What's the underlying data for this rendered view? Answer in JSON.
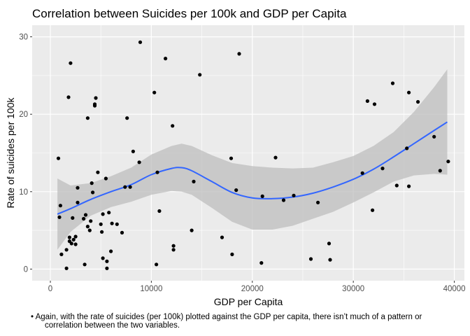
{
  "note": {
    "bullet": "•",
    "line1": "Again, with the rate of suicides (per 100k) plotted against the GDP per capita, there isn’t much of a pattern or",
    "line2": "correlation between the two variables."
  },
  "colors": {
    "panel": "#ebebeb",
    "grid": "#ffffff",
    "band": "#bdbdbd",
    "smooth": "#3366ff",
    "point": "#000000",
    "tick_text": "#4d4d4d"
  },
  "chart_data": {
    "type": "scatter",
    "title": "Correlation between Suicides per 100k and GDP per Capita",
    "xlabel": "GDP per Capita",
    "ylabel": "Rate of suicides per 100k",
    "xlim": [
      -1800,
      41000
    ],
    "ylim": [
      -1.5,
      31.5
    ],
    "xticks": [
      0,
      10000,
      20000,
      30000,
      40000
    ],
    "xtick_labels": [
      "0",
      "10000",
      "20000",
      "30000",
      "40000"
    ],
    "yticks": [
      0,
      10,
      20,
      30
    ],
    "ytick_labels": [
      "0",
      "10",
      "20",
      "30"
    ],
    "grid": true,
    "legend": "none",
    "points": [
      {
        "x": 800,
        "y": 14.3
      },
      {
        "x": 900,
        "y": 6.7
      },
      {
        "x": 1000,
        "y": 8.2
      },
      {
        "x": 1100,
        "y": 1.9
      },
      {
        "x": 1600,
        "y": 0.1
      },
      {
        "x": 1600,
        "y": 2.5
      },
      {
        "x": 1800,
        "y": 22.2
      },
      {
        "x": 1900,
        "y": 3.6
      },
      {
        "x": 1900,
        "y": 4.1
      },
      {
        "x": 2000,
        "y": 26.6
      },
      {
        "x": 2100,
        "y": 3.3
      },
      {
        "x": 2200,
        "y": 6.6
      },
      {
        "x": 2300,
        "y": 3.8
      },
      {
        "x": 2500,
        "y": 4.2
      },
      {
        "x": 2500,
        "y": 3.2
      },
      {
        "x": 2700,
        "y": 8.6
      },
      {
        "x": 2700,
        "y": 10.5
      },
      {
        "x": 3300,
        "y": 6.5
      },
      {
        "x": 3400,
        "y": 0.6
      },
      {
        "x": 3500,
        "y": 7.0
      },
      {
        "x": 3700,
        "y": 19.5
      },
      {
        "x": 3700,
        "y": 5.5
      },
      {
        "x": 3900,
        "y": 5.0
      },
      {
        "x": 4000,
        "y": 6.2
      },
      {
        "x": 4100,
        "y": 11.1
      },
      {
        "x": 4200,
        "y": 9.9
      },
      {
        "x": 4400,
        "y": 21.1
      },
      {
        "x": 4400,
        "y": 21.3
      },
      {
        "x": 4500,
        "y": 22.1
      },
      {
        "x": 4700,
        "y": 12.5
      },
      {
        "x": 5000,
        "y": 5.8
      },
      {
        "x": 5100,
        "y": 4.8
      },
      {
        "x": 5200,
        "y": 7.1
      },
      {
        "x": 5200,
        "y": 1.4
      },
      {
        "x": 5500,
        "y": 11.7
      },
      {
        "x": 5600,
        "y": 0.1
      },
      {
        "x": 5600,
        "y": 1.0
      },
      {
        "x": 5800,
        "y": 7.3
      },
      {
        "x": 6000,
        "y": 2.3
      },
      {
        "x": 6100,
        "y": 5.9
      },
      {
        "x": 6600,
        "y": 5.8
      },
      {
        "x": 7100,
        "y": 4.7
      },
      {
        "x": 7400,
        "y": 10.6
      },
      {
        "x": 7600,
        "y": 19.5
      },
      {
        "x": 7900,
        "y": 10.6
      },
      {
        "x": 8200,
        "y": 15.2
      },
      {
        "x": 8800,
        "y": 13.8
      },
      {
        "x": 8900,
        "y": 29.3
      },
      {
        "x": 10300,
        "y": 22.8
      },
      {
        "x": 10500,
        "y": 0.6
      },
      {
        "x": 10600,
        "y": 12.5
      },
      {
        "x": 10800,
        "y": 7.5
      },
      {
        "x": 11400,
        "y": 27.2
      },
      {
        "x": 12100,
        "y": 18.5
      },
      {
        "x": 12200,
        "y": 2.5
      },
      {
        "x": 12200,
        "y": 3.0
      },
      {
        "x": 14000,
        "y": 5.0
      },
      {
        "x": 14200,
        "y": 11.3
      },
      {
        "x": 14800,
        "y": 25.1
      },
      {
        "x": 17000,
        "y": 4.1
      },
      {
        "x": 17900,
        "y": 14.3
      },
      {
        "x": 18000,
        "y": 1.9
      },
      {
        "x": 18400,
        "y": 10.2
      },
      {
        "x": 18700,
        "y": 27.8
      },
      {
        "x": 20900,
        "y": 0.8
      },
      {
        "x": 21000,
        "y": 9.4
      },
      {
        "x": 22300,
        "y": 14.4
      },
      {
        "x": 23100,
        "y": 8.9
      },
      {
        "x": 24100,
        "y": 9.5
      },
      {
        "x": 25800,
        "y": 1.3
      },
      {
        "x": 26500,
        "y": 8.6
      },
      {
        "x": 27600,
        "y": 3.3
      },
      {
        "x": 27700,
        "y": 1.2
      },
      {
        "x": 30900,
        "y": 12.4
      },
      {
        "x": 31400,
        "y": 21.7
      },
      {
        "x": 31900,
        "y": 7.6
      },
      {
        "x": 32100,
        "y": 21.3
      },
      {
        "x": 32900,
        "y": 13.0
      },
      {
        "x": 33900,
        "y": 24.0
      },
      {
        "x": 34300,
        "y": 10.8
      },
      {
        "x": 35300,
        "y": 15.6
      },
      {
        "x": 35500,
        "y": 10.7
      },
      {
        "x": 35500,
        "y": 22.8
      },
      {
        "x": 36400,
        "y": 21.6
      },
      {
        "x": 38000,
        "y": 17.1
      },
      {
        "x": 38600,
        "y": 12.7
      },
      {
        "x": 39400,
        "y": 13.9
      }
    ],
    "smooth": {
      "x": [
        700,
        2000,
        4000,
        6000,
        8000,
        10000,
        12000,
        13000,
        14000,
        16000,
        18000,
        20000,
        22000,
        24000,
        26000,
        28000,
        30000,
        32000,
        34000,
        36000,
        38000,
        39300
      ],
      "y": [
        7.1,
        7.8,
        9.0,
        10.0,
        10.9,
        12.2,
        13.0,
        13.1,
        12.7,
        11.3,
        9.9,
        9.2,
        9.1,
        9.3,
        9.8,
        10.6,
        11.6,
        12.9,
        14.5,
        16.2,
        17.9,
        19.0
      ],
      "lower": [
        2.5,
        4.8,
        6.9,
        8.0,
        8.7,
        9.6,
        10.1,
        10.0,
        9.6,
        7.9,
        6.1,
        5.1,
        5.1,
        5.6,
        6.5,
        7.4,
        8.6,
        9.9,
        11.3,
        12.1,
        12.3,
        12.2
      ],
      "upper": [
        11.7,
        10.8,
        11.1,
        12.0,
        13.1,
        14.8,
        15.9,
        16.2,
        15.9,
        14.7,
        13.7,
        13.3,
        13.1,
        13.0,
        13.1,
        13.8,
        14.6,
        15.9,
        17.7,
        20.3,
        23.5,
        25.8
      ]
    }
  }
}
